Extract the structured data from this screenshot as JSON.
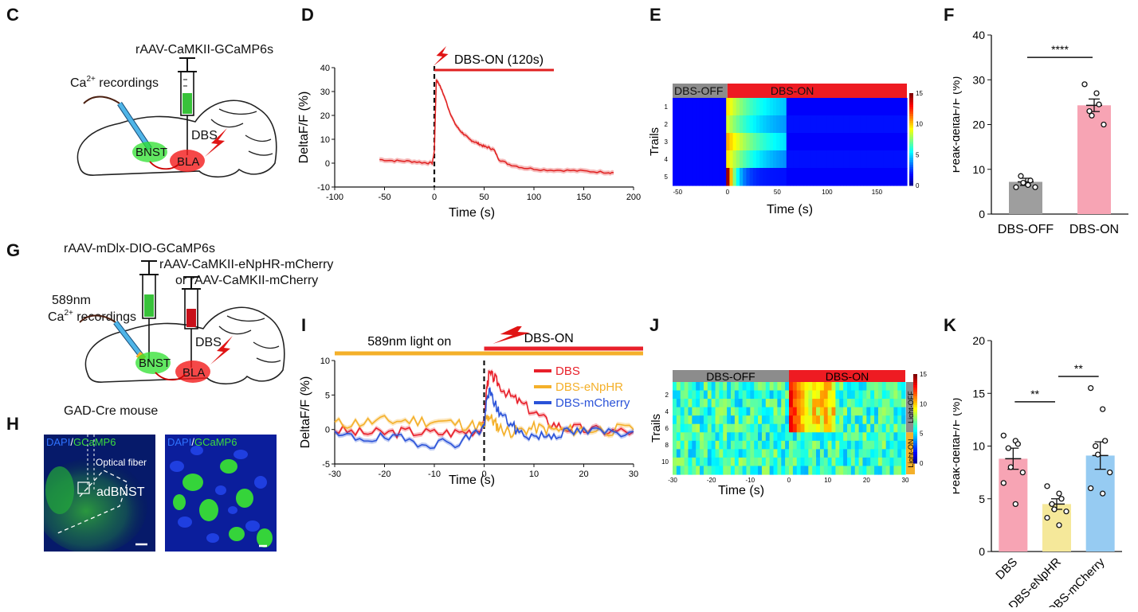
{
  "panels": {
    "C": {
      "letter": "C",
      "virus": "rAAV-CaMKII-GCaMP6s",
      "recording": "Ca",
      "recording_sup": "2+",
      "recording_rest": " recordings",
      "dbs": "DBS",
      "bnst": "BNST",
      "bla": "BLA"
    },
    "G": {
      "letter": "G",
      "virus1": "rAAV-mDlx-DIO-GCaMP6s",
      "virus2": "rAAV-CaMKII-eNpHR-mCherry",
      "virus3": "or rAAV-CaMKII-mCherry",
      "light": "589nm",
      "recording": "Ca",
      "recording_sup": "2+",
      "recording_rest": " recordings",
      "dbs": "DBS",
      "bnst": "BNST",
      "bla": "BLA",
      "mouse": "GAD-Cre mouse"
    },
    "H": {
      "letter": "H",
      "dapi": "DAPI",
      "sep": "/",
      "gcamp": "GCaMP6",
      "gcamp_right": "GCaMP6",
      "fiber": "Optical fiber",
      "region": "adBNST"
    },
    "D": {
      "letter": "D"
    },
    "E": {
      "letter": "E"
    },
    "F": {
      "letter": "F"
    },
    "I": {
      "letter": "I"
    },
    "J": {
      "letter": "J"
    },
    "K": {
      "letter": "K"
    }
  },
  "chart_data": [
    {
      "id": "D",
      "type": "line",
      "title": "",
      "xlabel": "Time (s)",
      "ylabel": "DeltaF/F (%)",
      "xlim": [
        -100,
        200
      ],
      "ylim": [
        -10,
        40
      ],
      "xticks": [
        "-100",
        "-50",
        "0",
        "50",
        "100",
        "150",
        "200"
      ],
      "yticks": [
        "-10",
        "0",
        "10",
        "20",
        "30",
        "40"
      ],
      "annotation": "DBS-ON (120s)",
      "stim_start": 0,
      "stim_end": 120,
      "series": [
        {
          "name": "DeltaF/F",
          "color": "#e02020",
          "x": [
            -55,
            -40,
            -25,
            -10,
            -2,
            0,
            2,
            5,
            10,
            15,
            20,
            25,
            30,
            35,
            40,
            45,
            50,
            55,
            60,
            65,
            75,
            90,
            110,
            130,
            150,
            170,
            180
          ],
          "y": [
            1.5,
            1,
            0.8,
            0.2,
            0,
            5,
            35,
            33,
            28,
            22,
            17,
            14,
            12,
            10,
            9,
            8,
            7,
            6.5,
            5.5,
            1.5,
            -0.5,
            -2,
            -2.8,
            -3,
            -3.3,
            -3.8,
            -4
          ]
        }
      ]
    },
    {
      "id": "E",
      "type": "heatmap",
      "xlabel": "Time (s)",
      "ylabel": "Trails",
      "xlim": [
        -55,
        180
      ],
      "xticks": [
        "-50",
        "0",
        "50",
        "100",
        "150"
      ],
      "rows": [
        "1",
        "2",
        "3",
        "4",
        "5"
      ],
      "bar_off": "DBS-OFF",
      "bar_on": "DBS-ON",
      "colorbar_ticks": [
        "15",
        "10",
        "5",
        "0"
      ],
      "vmin": 0,
      "vmax": 15,
      "profiles": [
        {
          "peak": 9,
          "decay": 30,
          "sustain": 2.5
        },
        {
          "peak": 8,
          "decay": 28,
          "sustain": 2
        },
        {
          "peak": 10,
          "decay": 35,
          "sustain": 2.5
        },
        {
          "peak": 9,
          "decay": 30,
          "sustain": 1.5
        },
        {
          "peak": 15,
          "decay": 8,
          "sustain": 0.5
        }
      ]
    },
    {
      "id": "F",
      "type": "bar",
      "xlabel": "",
      "ylabel": "Peak-deltaF/F (%)",
      "ylim": [
        0,
        40
      ],
      "yticks": [
        "0",
        "10",
        "20",
        "30",
        "40"
      ],
      "categories": [
        "DBS-OFF",
        "DBS-ON"
      ],
      "values": [
        7.2,
        24.3
      ],
      "errors": [
        0.8,
        1.4
      ],
      "colors": [
        "#9e9e9e",
        "#f7a4b4"
      ],
      "points": [
        [
          6,
          6.5,
          7.5,
          8.5,
          7,
          6
        ],
        [
          29,
          27,
          24.5,
          23,
          22,
          20
        ]
      ],
      "significance": [
        {
          "from": 0,
          "to": 1,
          "label": "****",
          "y": 35
        }
      ]
    },
    {
      "id": "I",
      "type": "line",
      "xlabel": "Time (s)",
      "ylabel": "DeltaF/F (%)",
      "xlim": [
        -30,
        30
      ],
      "ylim": [
        -5,
        10
      ],
      "xticks": [
        "-30",
        "-20",
        "-10",
        "0",
        "10",
        "20",
        "30"
      ],
      "yticks": [
        "-5",
        "0",
        "5",
        "10"
      ],
      "light_label": "589nm light on",
      "dbs_label": "DBS-ON",
      "series": [
        {
          "name": "DBS",
          "color": "#e8202a",
          "x": [
            -30,
            -25,
            -20,
            -15,
            -10,
            -5,
            -1,
            0,
            0.5,
            1,
            2,
            3,
            5,
            7,
            10,
            13,
            16,
            20,
            25,
            30
          ],
          "y": [
            0,
            -0.5,
            -0.5,
            -0.3,
            -0.5,
            -0.4,
            0,
            0.5,
            6,
            8,
            7.5,
            6.5,
            5,
            4,
            2.5,
            1,
            0.3,
            0,
            -0.2,
            -0.3
          ]
        },
        {
          "name": "DBS-eNpHR",
          "color": "#f4b02a",
          "x": [
            -30,
            -25,
            -20,
            -15,
            -10,
            -5,
            -1,
            0,
            0.5,
            1,
            2,
            3,
            5,
            7,
            10,
            13,
            16,
            20,
            25,
            30
          ],
          "y": [
            0.8,
            1,
            1.2,
            1.3,
            1.2,
            0.8,
            0.5,
            0.4,
            1.5,
            2,
            1,
            0.2,
            -0.3,
            -0.2,
            0.2,
            0,
            -0.2,
            0,
            -0.1,
            0
          ]
        },
        {
          "name": "DBS-mCherry",
          "color": "#2a52d8",
          "x": [
            -30,
            -25,
            -20,
            -15,
            -10,
            -5,
            -1,
            0,
            0.5,
            1,
            2,
            3,
            5,
            7,
            10,
            13,
            16,
            20,
            25,
            30
          ],
          "y": [
            -1,
            -1.2,
            -1.3,
            -1.6,
            -2,
            -1.8,
            -0.3,
            0.5,
            4,
            5.5,
            4,
            2.5,
            1,
            -0.5,
            -1,
            -0.8,
            -0.5,
            -0.3,
            -0.4,
            -0.3
          ]
        }
      ]
    },
    {
      "id": "J",
      "type": "heatmap",
      "xlabel": "Time (s)",
      "ylabel": "Trails",
      "xlim": [
        -30,
        30
      ],
      "xticks": [
        "-30",
        "-20",
        "-10",
        "0",
        "10",
        "20",
        "30"
      ],
      "rows": [
        "2",
        "4",
        "6",
        "8",
        "10"
      ],
      "bar_off": "DBS-OFF",
      "bar_on": "DBS-ON",
      "side_top": "Light-OFF",
      "side_bottom": "Light-ON",
      "colorbar_ticks": [
        "15",
        "10",
        "5",
        "0"
      ],
      "vmin": 0,
      "vmax": 15
    },
    {
      "id": "K",
      "type": "bar",
      "xlabel": "",
      "ylabel": "Peak-deltaF/F (%)",
      "ylim": [
        0,
        20
      ],
      "yticks": [
        "0",
        "5",
        "10",
        "15",
        "20"
      ],
      "categories": [
        "DBS",
        "DBS-eNpHR",
        "DBS-mCherry"
      ],
      "values": [
        8.8,
        4.5,
        9.1
      ],
      "errors": [
        1,
        0.5,
        1.3
      ],
      "colors": [
        "#f7a4b4",
        "#f5e89a",
        "#96cbf2"
      ],
      "points": [
        [
          11,
          10.5,
          10.2,
          9.8,
          8,
          7.5,
          6.5,
          4.5
        ],
        [
          6.2,
          5.5,
          5,
          4.5,
          4,
          3.8,
          3.2,
          2.5
        ],
        [
          15.5,
          13.5,
          10.5,
          10,
          9.2,
          7.5,
          6,
          5.5
        ]
      ],
      "significance": [
        {
          "from": 0,
          "to": 1,
          "label": "**",
          "y": 14.2
        },
        {
          "from": 1,
          "to": 2,
          "label": "**",
          "y": 16.6
        }
      ]
    }
  ],
  "colors": {
    "red": "#e02020",
    "orange": "#f4b02a",
    "blue": "#2a52d8",
    "green": "#3ddc3d",
    "dark_blue": "#03104d"
  }
}
